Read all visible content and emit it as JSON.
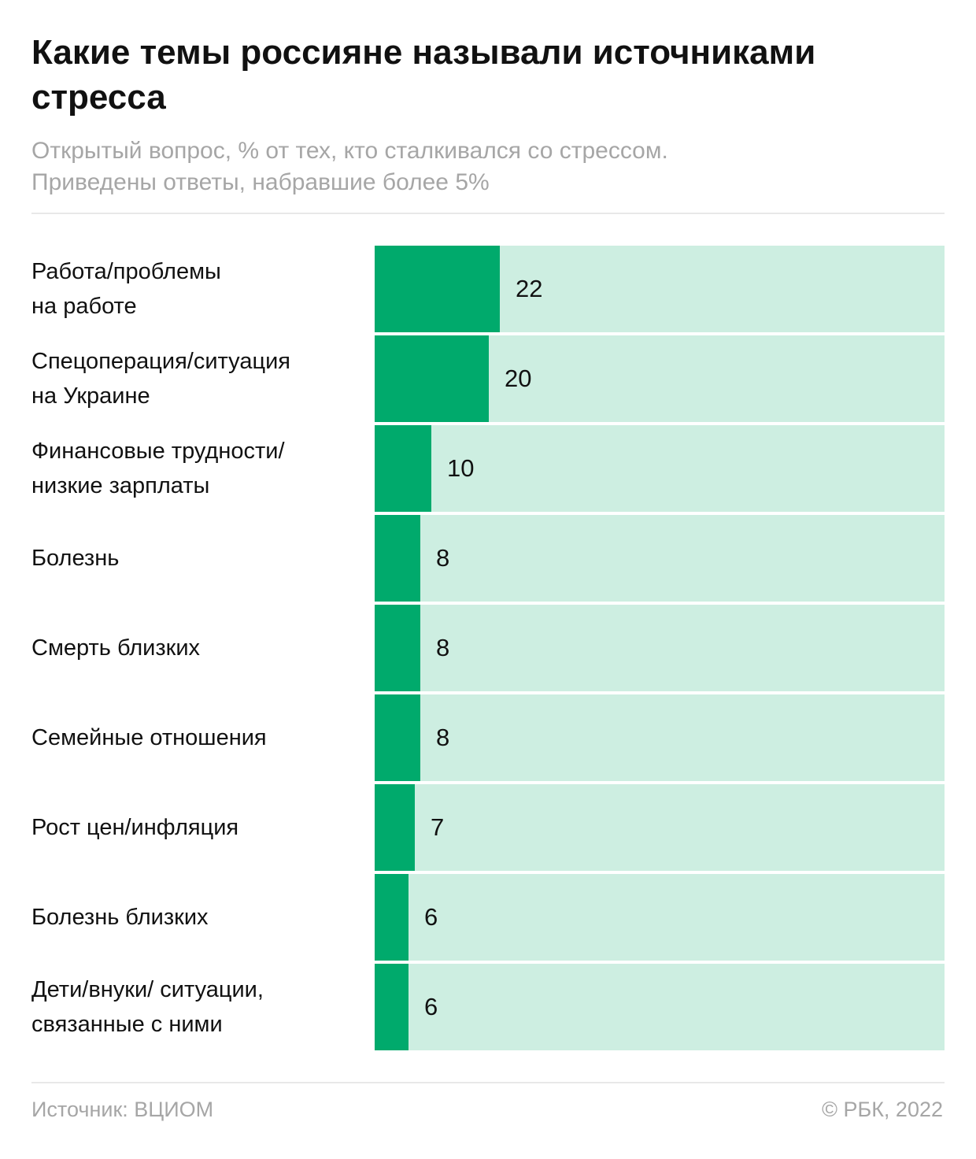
{
  "header": {
    "title_lines": [
      "Какие темы россияне называли источниками",
      "стресса"
    ],
    "subtitle_lines": [
      "Открытый вопрос, % от тех, кто сталкивался со стрессом.",
      "Приведены ответы, набравшие более 5%"
    ]
  },
  "footer": {
    "source": "Источник: ВЦИОМ",
    "copyright": "© РБК, 2022"
  },
  "colors": {
    "bar": "#00aa6c",
    "track": "#cdeee1"
  },
  "chart_data": {
    "type": "bar",
    "orientation": "horizontal",
    "xlim": [
      0,
      100
    ],
    "categories": [
      [
        "Работа/проблемы",
        "на работе"
      ],
      [
        "Спецоперация/ситуация",
        "на Украине"
      ],
      [
        "Финансовые трудности/",
        "низкие зарплаты"
      ],
      [
        "Болезнь"
      ],
      [
        "Смерть близких"
      ],
      [
        "Семейные отношения"
      ],
      [
        "Рост цен/инфляция"
      ],
      [
        "Болезнь близких"
      ],
      [
        "Дети/внуки/ ситуации,",
        "связанные с ними"
      ]
    ],
    "values": [
      22,
      20,
      10,
      8,
      8,
      8,
      7,
      6,
      6
    ],
    "grid": false,
    "legend": "none"
  }
}
